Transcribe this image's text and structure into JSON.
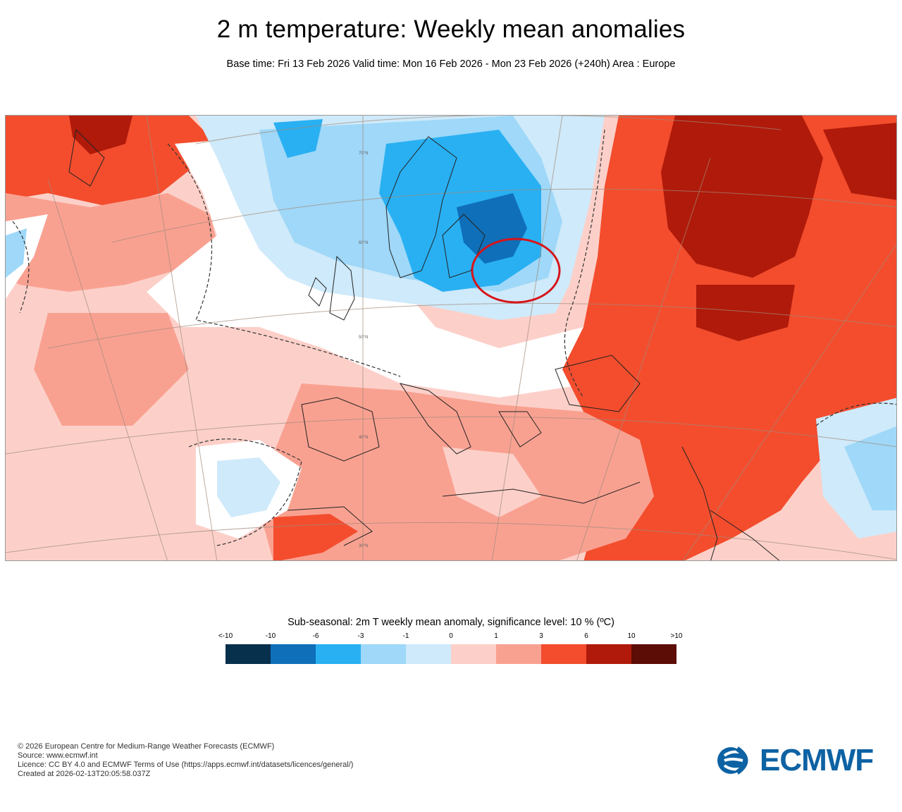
{
  "header": {
    "title": "2 m temperature: Weekly mean anomalies",
    "subtitle": "Base time: Fri 13 Feb 2026 Valid time: Mon 16 Feb 2026 - Mon 23 Feb 2026 (+240h) Area : Europe"
  },
  "map": {
    "area": "Europe",
    "graticule_labels": [
      "70°N",
      "60°N",
      "50°N",
      "40°N",
      "30°N"
    ],
    "highlight": "red circle over western Russia / Belarus region"
  },
  "legend": {
    "title": "Sub-seasonal: 2m T weekly mean anomaly, significance level: 10 % (ºC)",
    "ticks": [
      "<-10",
      "-10",
      "-6",
      "-3",
      "-1",
      "0",
      "1",
      "3",
      "6",
      "10",
      ">10"
    ],
    "colors": [
      "#07304d",
      "#0f6fb8",
      "#29b0f2",
      "#9fd8f8",
      "#cfeafa",
      "#fcd0c9",
      "#f9a191",
      "#f34d2d",
      "#b01a0a",
      "#5c0d05"
    ]
  },
  "footer": {
    "line1": "© 2026 European Centre for Medium-Range Weather Forecasts (ECMWF)",
    "line2": "Source: www.ecmwf.int",
    "line3": "Licence: CC BY 4.0 and ECMWF Terms of Use (https://apps.ecmwf.int/datasets/licences/general/)",
    "line4": "Created at 2026-02-13T20:05:58.037Z"
  },
  "logo": {
    "text": "ECMWF",
    "color": "#0d62a3"
  }
}
